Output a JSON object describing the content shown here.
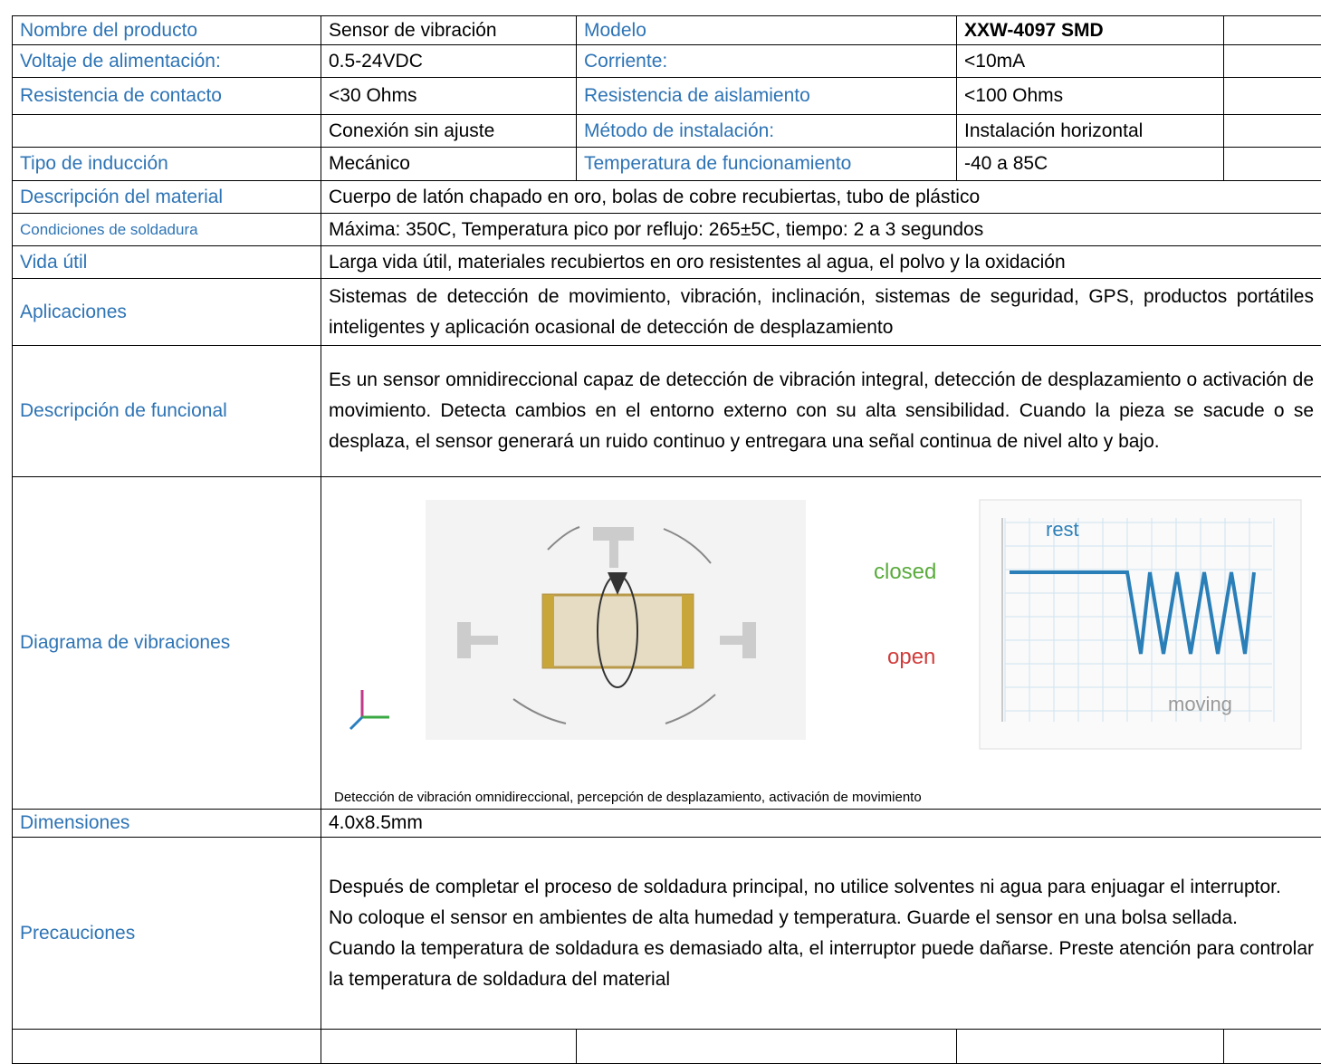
{
  "table": {
    "spec_rows": [
      {
        "label": "Nombre del producto",
        "value": "Sensor de vibración",
        "label2": "Modelo",
        "value2": "XXW-4097 SMD"
      },
      {
        "label": "Voltaje de alimentación:",
        "value": "0.5-24VDC",
        "label2": "Corriente:",
        "value2": "<10mA"
      },
      {
        "label": "Resistencia de contacto",
        "value": "<30 Ohms",
        "label2": "Resistencia de aislamiento",
        "value2": "<100 Ohms"
      },
      {
        "value": "Conexión sin ajuste",
        "label2": "Método de instalación:",
        "value2": "Instalación horizontal"
      },
      {
        "label": "Tipo de inducción",
        "value": "Mecánico",
        "label2": "Temperatura de funcionamiento",
        "value2": "-40 a 85C"
      }
    ],
    "detail_rows": [
      {
        "label": "Descripción del material",
        "text": "Cuerpo de latón chapado en oro, bolas de cobre recubiertas, tubo de plástico"
      },
      {
        "label": "Condiciones  de soldadura",
        "text": "Máxima: 350C, Temperatura pico por reflujo: 265±5C, tiempo: 2 a 3 segundos"
      },
      {
        "label": "Vida útil",
        "text": "Larga vida útil, materiales recubiertos en oro resistentes al agua, el polvo y la oxidación"
      },
      {
        "label": "Aplicaciones",
        "text": "Sistemas de detección de movimiento, vibración, inclinación, sistemas de seguridad, GPS, productos portátiles inteligentes y aplicación ocasional de detección de desplazamiento"
      },
      {
        "label": "Descripción de funcional",
        "text": "Es un sensor omnidireccional capaz de detección de vibración integral, detección de desplazamiento o activación de movimiento. Detecta cambios en el entorno externo con su alta sensibilidad. Cuando la pieza se sacude o se desplaza, el sensor generará un ruido continuo y entregara una señal continua de nivel alto y bajo."
      }
    ],
    "diagram": {
      "label": "Diagrama de vibraciones",
      "closed": "closed",
      "open": "open",
      "rest": "rest",
      "moving": "moving",
      "caption": "Detección de vibración omnidireccional, percepción de desplazamiento, activación de movimiento"
    },
    "dimensions": {
      "label": "Dimensiones",
      "text": "4.0x8.5mm"
    },
    "precautions": {
      "label": "Precauciones",
      "paragraphs": [
        "Después de completar el proceso de soldadura principal, no utilice solventes ni agua para enjuagar el interruptor.",
        "No coloque el sensor en ambientes de alta humedad y temperatura. Guarde el sensor en una bolsa sellada.",
        "Cuando la temperatura de soldadura es demasiado alta, el interruptor puede dañarse. Preste atención para controlar la temperatura de soldadura del material"
      ]
    }
  }
}
